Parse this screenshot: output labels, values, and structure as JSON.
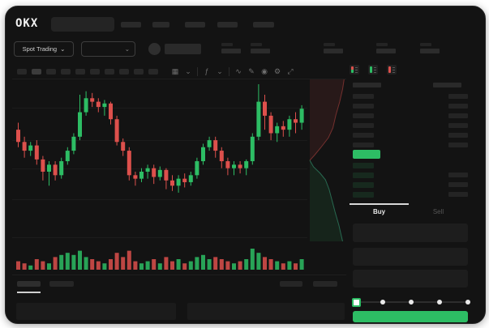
{
  "app": {
    "logo_text": "OKX"
  },
  "colors": {
    "green": "#2dbd64",
    "red": "#dd504c",
    "bg": "#131313",
    "grid": "#1c1c1c"
  },
  "subheader": {
    "market_type_label": "Spot Trading",
    "chevron": "⌄"
  },
  "topnav": {
    "pill_count": 5
  },
  "stats_row": {
    "stat_count": 5
  },
  "chart_toolbar": {
    "timeframe_count": 10,
    "active_timeframe_index": 1,
    "icons": [
      {
        "name": "chart-type-icon",
        "glyph": "▦"
      },
      {
        "name": "chevron-down-icon",
        "glyph": "⌄"
      },
      {
        "divider": true
      },
      {
        "name": "indicators-icon",
        "glyph": "ƒ"
      },
      {
        "name": "chevron-down-icon",
        "glyph": "⌄"
      },
      {
        "divider": true
      },
      {
        "name": "line-tool-icon",
        "glyph": "∿"
      },
      {
        "name": "draw-tool-icon",
        "glyph": "✎"
      },
      {
        "name": "screenshot-icon",
        "glyph": "◉"
      },
      {
        "name": "chart-settings-icon",
        "glyph": "⚙"
      },
      {
        "name": "fullscreen-icon",
        "glyph": "⤢"
      }
    ]
  },
  "orderbook": {
    "view_icons": [
      {
        "name": "orderbook-combined-icon",
        "mode": "both"
      },
      {
        "name": "orderbook-bids-icon",
        "mode": "green"
      },
      {
        "name": "orderbook-asks-icon",
        "mode": "red"
      }
    ],
    "ask_row_count": 6,
    "bid_row_count": 4,
    "bid_rows_missing_right_bar": 1,
    "last_price_color": "#2dbd64"
  },
  "trade_panel": {
    "buy_tab_label": "Buy",
    "sell_tab_label": "Sell",
    "form_box_count": 3,
    "percent_slider": {
      "stop_count": 5,
      "active_stop_index": 0
    },
    "submit_button_color": "#2dbd64"
  },
  "bottom_panel": {
    "left_tab_count": 2,
    "active_tab_index": 0,
    "right_pill_count": 2,
    "box_count": 2
  },
  "chart_data": {
    "type": "candlestick",
    "units": "relative-0-100 (no axis labels visible in screenshot)",
    "grid": true,
    "candles": [
      [
        62,
        66,
        52,
        55
      ],
      [
        55,
        58,
        46,
        50
      ],
      [
        50,
        55,
        47,
        53
      ],
      [
        53,
        56,
        42,
        45
      ],
      [
        45,
        47,
        33,
        38
      ],
      [
        38,
        44,
        30,
        42
      ],
      [
        42,
        44,
        33,
        36
      ],
      [
        36,
        46,
        34,
        44
      ],
      [
        44,
        52,
        42,
        50
      ],
      [
        50,
        60,
        48,
        58
      ],
      [
        58,
        82,
        56,
        72
      ],
      [
        72,
        84,
        70,
        80
      ],
      [
        80,
        83,
        75,
        78
      ],
      [
        78,
        80,
        72,
        75
      ],
      [
        75,
        79,
        70,
        77
      ],
      [
        77,
        78,
        65,
        68
      ],
      [
        68,
        70,
        53,
        55
      ],
      [
        55,
        57,
        47,
        50
      ],
      [
        50,
        52,
        33,
        36
      ],
      [
        36,
        38,
        30,
        34
      ],
      [
        34,
        40,
        32,
        38
      ],
      [
        38,
        42,
        34,
        40
      ],
      [
        40,
        42,
        31,
        35
      ],
      [
        35,
        41,
        33,
        39
      ],
      [
        39,
        40,
        28,
        33
      ],
      [
        33,
        36,
        27,
        30
      ],
      [
        30,
        36,
        26,
        34
      ],
      [
        34,
        37,
        29,
        32
      ],
      [
        32,
        38,
        30,
        36
      ],
      [
        36,
        46,
        34,
        44
      ],
      [
        44,
        54,
        42,
        52
      ],
      [
        52,
        58,
        50,
        56
      ],
      [
        56,
        58,
        46,
        50
      ],
      [
        50,
        52,
        40,
        44
      ],
      [
        44,
        46,
        36,
        40
      ],
      [
        40,
        44,
        36,
        42
      ],
      [
        42,
        44,
        37,
        40
      ],
      [
        40,
        45,
        36,
        44
      ],
      [
        44,
        60,
        42,
        58
      ],
      [
        58,
        88,
        56,
        78
      ],
      [
        78,
        82,
        62,
        70
      ],
      [
        70,
        72,
        56,
        60
      ],
      [
        60,
        66,
        55,
        64
      ],
      [
        64,
        67,
        58,
        62
      ],
      [
        62,
        70,
        58,
        68
      ],
      [
        68,
        72,
        60,
        66
      ],
      [
        66,
        76,
        62,
        74
      ]
    ],
    "volumes": [
      4,
      3,
      2,
      5,
      4,
      3,
      6,
      7,
      8,
      7,
      9,
      6,
      5,
      4,
      3,
      5,
      8,
      6,
      9,
      4,
      3,
      4,
      5,
      3,
      6,
      4,
      5,
      3,
      4,
      6,
      7,
      5,
      6,
      5,
      4,
      3,
      4,
      5,
      10,
      8,
      6,
      5,
      4,
      3,
      4,
      3,
      5
    ],
    "depth": {
      "asks": [
        [
          0.92,
          0
        ],
        [
          0.88,
          0.06
        ],
        [
          0.8,
          0.14
        ],
        [
          0.7,
          0.22
        ],
        [
          0.62,
          0.3
        ],
        [
          0.5,
          0.36
        ],
        [
          0.3,
          0.42
        ],
        [
          0.12,
          0.47
        ],
        [
          0,
          0.5
        ]
      ],
      "bids": [
        [
          0,
          0.5
        ],
        [
          0.1,
          0.54
        ],
        [
          0.28,
          0.58
        ],
        [
          0.42,
          0.62
        ],
        [
          0.52,
          0.68
        ],
        [
          0.6,
          0.75
        ],
        [
          0.68,
          0.82
        ],
        [
          0.78,
          0.9
        ],
        [
          0.85,
          0.97
        ],
        [
          0.88,
          1
        ]
      ]
    }
  }
}
